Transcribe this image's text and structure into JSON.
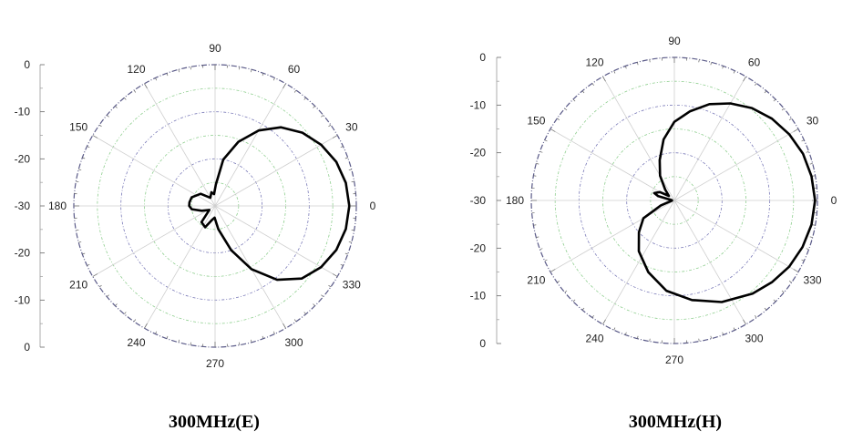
{
  "chart_data": [
    {
      "type": "polar-line",
      "caption": "300MHz(E)",
      "angle_labels": [
        "0",
        "30",
        "60",
        "90",
        "120",
        "150",
        "180",
        "210",
        "240",
        "270",
        "300",
        "330"
      ],
      "radial_axis_labels": [
        "0",
        "-10",
        "-20",
        "-30",
        "-20",
        "-10",
        "0"
      ],
      "radial_range_db": [
        -30,
        0
      ],
      "grid": true,
      "series": [
        {
          "color": "#000000",
          "points": [
            {
              "angle": 0,
              "db": -1.5
            },
            {
              "angle": 10,
              "db": -1.8
            },
            {
              "angle": 20,
              "db": -2.6
            },
            {
              "angle": 30,
              "db": -4.0
            },
            {
              "angle": 40,
              "db": -5.8
            },
            {
              "angle": 50,
              "db": -8.2
            },
            {
              "angle": 60,
              "db": -11.5
            },
            {
              "angle": 70,
              "db": -15.5
            },
            {
              "angle": 80,
              "db": -20.0
            },
            {
              "angle": 88,
              "db": -25.5
            },
            {
              "angle": 95,
              "db": -27.5
            },
            {
              "angle": 105,
              "db": -27.0
            },
            {
              "angle": 120,
              "db": -28.0
            },
            {
              "angle": 140,
              "db": -26.0
            },
            {
              "angle": 160,
              "db": -24.7
            },
            {
              "angle": 172,
              "db": -24.5
            },
            {
              "angle": 180,
              "db": -24.5
            },
            {
              "angle": 188,
              "db": -25.0
            },
            {
              "angle": 200,
              "db": -27.0
            },
            {
              "angle": 215,
              "db": -28.5
            },
            {
              "angle": 230,
              "db": -25.5
            },
            {
              "angle": 245,
              "db": -25.0
            },
            {
              "angle": 258,
              "db": -27.0
            },
            {
              "angle": 268,
              "db": -27.5
            },
            {
              "angle": 278,
              "db": -25.0
            },
            {
              "angle": 290,
              "db": -20.0
            },
            {
              "angle": 300,
              "db": -14.5
            },
            {
              "angle": 310,
              "db": -9.5
            },
            {
              "angle": 320,
              "db": -6.0
            },
            {
              "angle": 330,
              "db": -4.0
            },
            {
              "angle": 340,
              "db": -2.6
            },
            {
              "angle": 350,
              "db": -1.8
            }
          ]
        }
      ]
    },
    {
      "type": "polar-line",
      "caption": "300MHz(H)",
      "angle_labels": [
        "0",
        "30",
        "60",
        "90",
        "120",
        "150",
        "180",
        "210",
        "240",
        "270",
        "300",
        "330"
      ],
      "radial_axis_labels": [
        "0",
        "-10",
        "-20",
        "-30",
        "-20",
        "-10",
        "0"
      ],
      "radial_range_db": [
        -30,
        0
      ],
      "grid": true,
      "series": [
        {
          "color": "#000000",
          "points": [
            {
              "angle": 0,
              "db": -0.5
            },
            {
              "angle": 10,
              "db": -0.8
            },
            {
              "angle": 20,
              "db": -1.3
            },
            {
              "angle": 30,
              "db": -2.2
            },
            {
              "angle": 40,
              "db": -3.3
            },
            {
              "angle": 50,
              "db": -4.7
            },
            {
              "angle": 60,
              "db": -6.5
            },
            {
              "angle": 70,
              "db": -8.5
            },
            {
              "angle": 80,
              "db": -11.0
            },
            {
              "angle": 90,
              "db": -13.5
            },
            {
              "angle": 100,
              "db": -17.0
            },
            {
              "angle": 110,
              "db": -21.0
            },
            {
              "angle": 120,
              "db": -24.0
            },
            {
              "angle": 130,
              "db": -27.0
            },
            {
              "angle": 140,
              "db": -28.5
            },
            {
              "angle": 150,
              "db": -26.5
            },
            {
              "angle": 160,
              "db": -25.5
            },
            {
              "angle": 165,
              "db": -26.5
            },
            {
              "angle": 175,
              "db": -29.5
            },
            {
              "angle": 185,
              "db": -29.5
            },
            {
              "angle": 200,
              "db": -27.0
            },
            {
              "angle": 210,
              "db": -22.5
            },
            {
              "angle": 222,
              "db": -20.0
            },
            {
              "angle": 235,
              "db": -17.0
            },
            {
              "angle": 250,
              "db": -14.0
            },
            {
              "angle": 265,
              "db": -11.0
            },
            {
              "angle": 280,
              "db": -8.8
            },
            {
              "angle": 295,
              "db": -6.5
            },
            {
              "angle": 310,
              "db": -4.5
            },
            {
              "angle": 320,
              "db": -3.3
            },
            {
              "angle": 330,
              "db": -2.2
            },
            {
              "angle": 340,
              "db": -1.4
            },
            {
              "angle": 350,
              "db": -0.8
            }
          ]
        }
      ]
    }
  ]
}
